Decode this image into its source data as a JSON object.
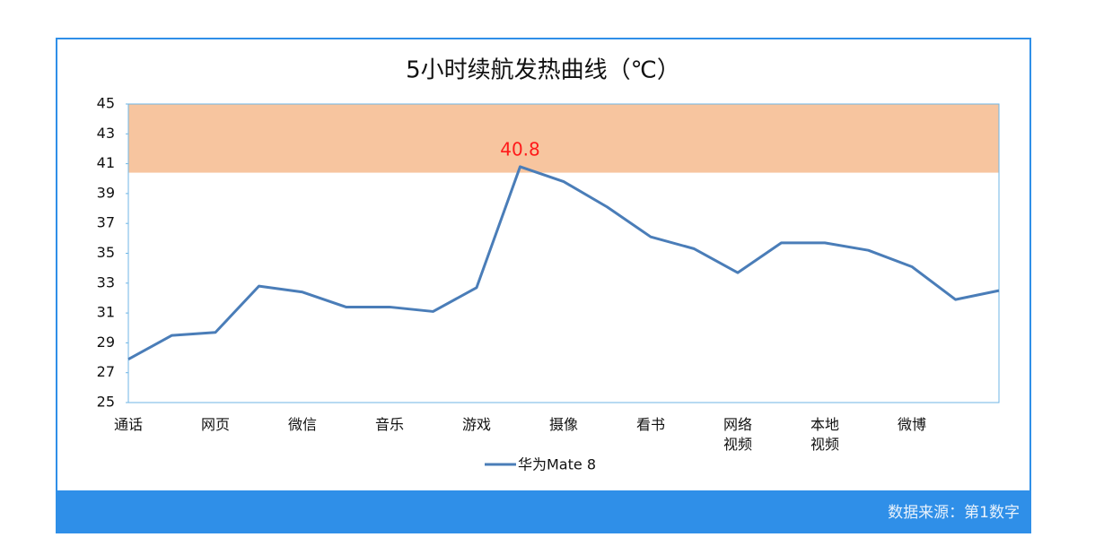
{
  "chart_data": {
    "type": "line",
    "title": "5小时续航发热曲线（℃）",
    "categories": [
      "通话",
      null,
      "网页",
      null,
      "微信",
      null,
      "音乐",
      null,
      "游戏",
      null,
      "摄像",
      null,
      "看书",
      null,
      "网络视频",
      null,
      "本地视频",
      null,
      "微博",
      null,
      null
    ],
    "series": [
      {
        "name": "华为Mate 8",
        "color": "#4a7db8",
        "values": [
          27.9,
          29.5,
          29.7,
          32.8,
          32.4,
          31.4,
          31.4,
          31.1,
          32.7,
          40.8,
          39.8,
          38.1,
          36.1,
          35.3,
          33.7,
          35.7,
          35.7,
          35.2,
          34.1,
          31.9,
          32.5
        ]
      }
    ],
    "labeled_point": 9,
    "band": {
      "range": [
        40.4,
        45
      ],
      "color": "#f7c59f"
    },
    "ylim": [
      25,
      45
    ],
    "yticks": [
      25,
      27,
      29,
      31,
      33,
      35,
      37,
      39,
      41,
      43,
      45
    ],
    "legend": "bottom",
    "source": "数据来源：第1数字"
  }
}
